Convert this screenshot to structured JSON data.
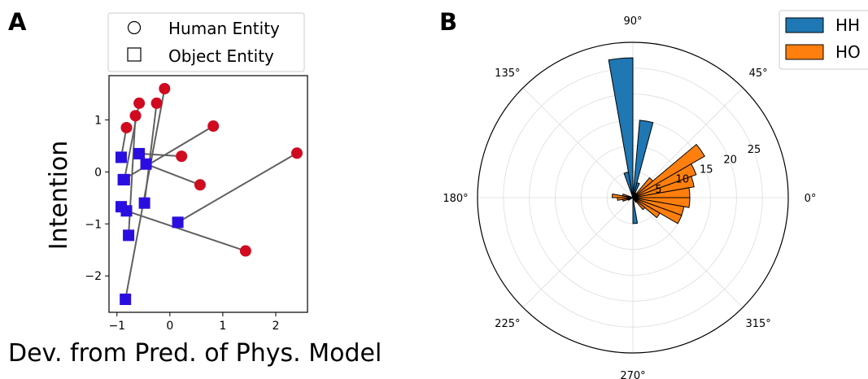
{
  "panels": {
    "a_label": "A",
    "b_label": "B"
  },
  "chart_data": [
    {
      "type": "scatter",
      "xlabel": "Dev. from Pred. of Phys. Model",
      "ylabel": "Intention",
      "xlim": [
        -1.15,
        2.6
      ],
      "ylim": [
        -2.7,
        1.85
      ],
      "xticks": [
        -1,
        0,
        1,
        2
      ],
      "yticks": [
        -2,
        -1,
        0,
        1
      ],
      "legend": {
        "placement": "top",
        "entries": [
          {
            "label": "Human Entity",
            "marker": "circle"
          },
          {
            "label": "Object Entity",
            "marker": "square"
          }
        ]
      },
      "colors": {
        "human": "#d00a1f",
        "object": "#2a0ee0",
        "line": "#606060"
      },
      "pairs": [
        {
          "human": [
            -0.82,
            0.85
          ],
          "object": [
            -0.92,
            0.28
          ]
        },
        {
          "human": [
            -0.58,
            1.32
          ],
          "object": [
            -0.86,
            -0.15
          ]
        },
        {
          "human": [
            -0.65,
            1.08
          ],
          "object": [
            -0.78,
            -1.22
          ]
        },
        {
          "human": [
            -0.1,
            1.6
          ],
          "object": [
            -0.84,
            -2.45
          ]
        },
        {
          "human": [
            -0.25,
            1.32
          ],
          "object": [
            -0.48,
            -0.6
          ]
        },
        {
          "human": [
            0.82,
            0.88
          ],
          "object": [
            -0.88,
            -0.15
          ]
        },
        {
          "human": [
            0.22,
            0.3
          ],
          "object": [
            -0.58,
            0.35
          ]
        },
        {
          "human": [
            0.57,
            -0.25
          ],
          "object": [
            -0.45,
            0.15
          ]
        },
        {
          "human": [
            1.43,
            -1.52
          ],
          "object": [
            -0.82,
            -0.75
          ]
        },
        {
          "human": [
            2.4,
            0.36
          ],
          "object": [
            0.15,
            -0.97
          ]
        },
        {
          "human": null,
          "object": [
            -0.92,
            -0.67
          ]
        }
      ]
    },
    {
      "type": "polar-histogram",
      "angle_labels": [
        "0°",
        "45°",
        "90°",
        "135°",
        "180°",
        "225°",
        "270°",
        "315°"
      ],
      "radial_ticks": [
        5,
        10,
        15,
        20,
        25
      ],
      "rlim": [
        0,
        30
      ],
      "radial_label_angle_deg": 22.5,
      "bin_width_deg": 10,
      "legend": {
        "placement": "top-right"
      },
      "series": [
        {
          "name": "HH",
          "color": "#1f77b4",
          "bins": [
            {
              "center_deg": 95,
              "count": 27
            },
            {
              "center_deg": 80,
              "count": 15
            },
            {
              "center_deg": 105,
              "count": 5
            },
            {
              "center_deg": 70,
              "count": 3
            },
            {
              "center_deg": 190,
              "count": 1
            },
            {
              "center_deg": 200,
              "count": 1
            },
            {
              "center_deg": 275,
              "count": 5
            }
          ]
        },
        {
          "name": "HO",
          "color": "#ff7f0e",
          "bins": [
            {
              "center_deg": 35,
              "count": 16
            },
            {
              "center_deg": 25,
              "count": 13
            },
            {
              "center_deg": 15,
              "count": 12
            },
            {
              "center_deg": 5,
              "count": 11
            },
            {
              "center_deg": -5,
              "count": 11
            },
            {
              "center_deg": -15,
              "count": 10
            },
            {
              "center_deg": -25,
              "count": 10
            },
            {
              "center_deg": -35,
              "count": 6
            },
            {
              "center_deg": -45,
              "count": 3
            },
            {
              "center_deg": -55,
              "count": 1
            },
            {
              "center_deg": 45,
              "count": 5
            },
            {
              "center_deg": 55,
              "count": 1
            },
            {
              "center_deg": 175,
              "count": 4
            },
            {
              "center_deg": 185,
              "count": 3
            },
            {
              "center_deg": 165,
              "count": 2
            },
            {
              "center_deg": 195,
              "count": 2
            },
            {
              "center_deg": 205,
              "count": 1
            }
          ]
        }
      ]
    }
  ]
}
